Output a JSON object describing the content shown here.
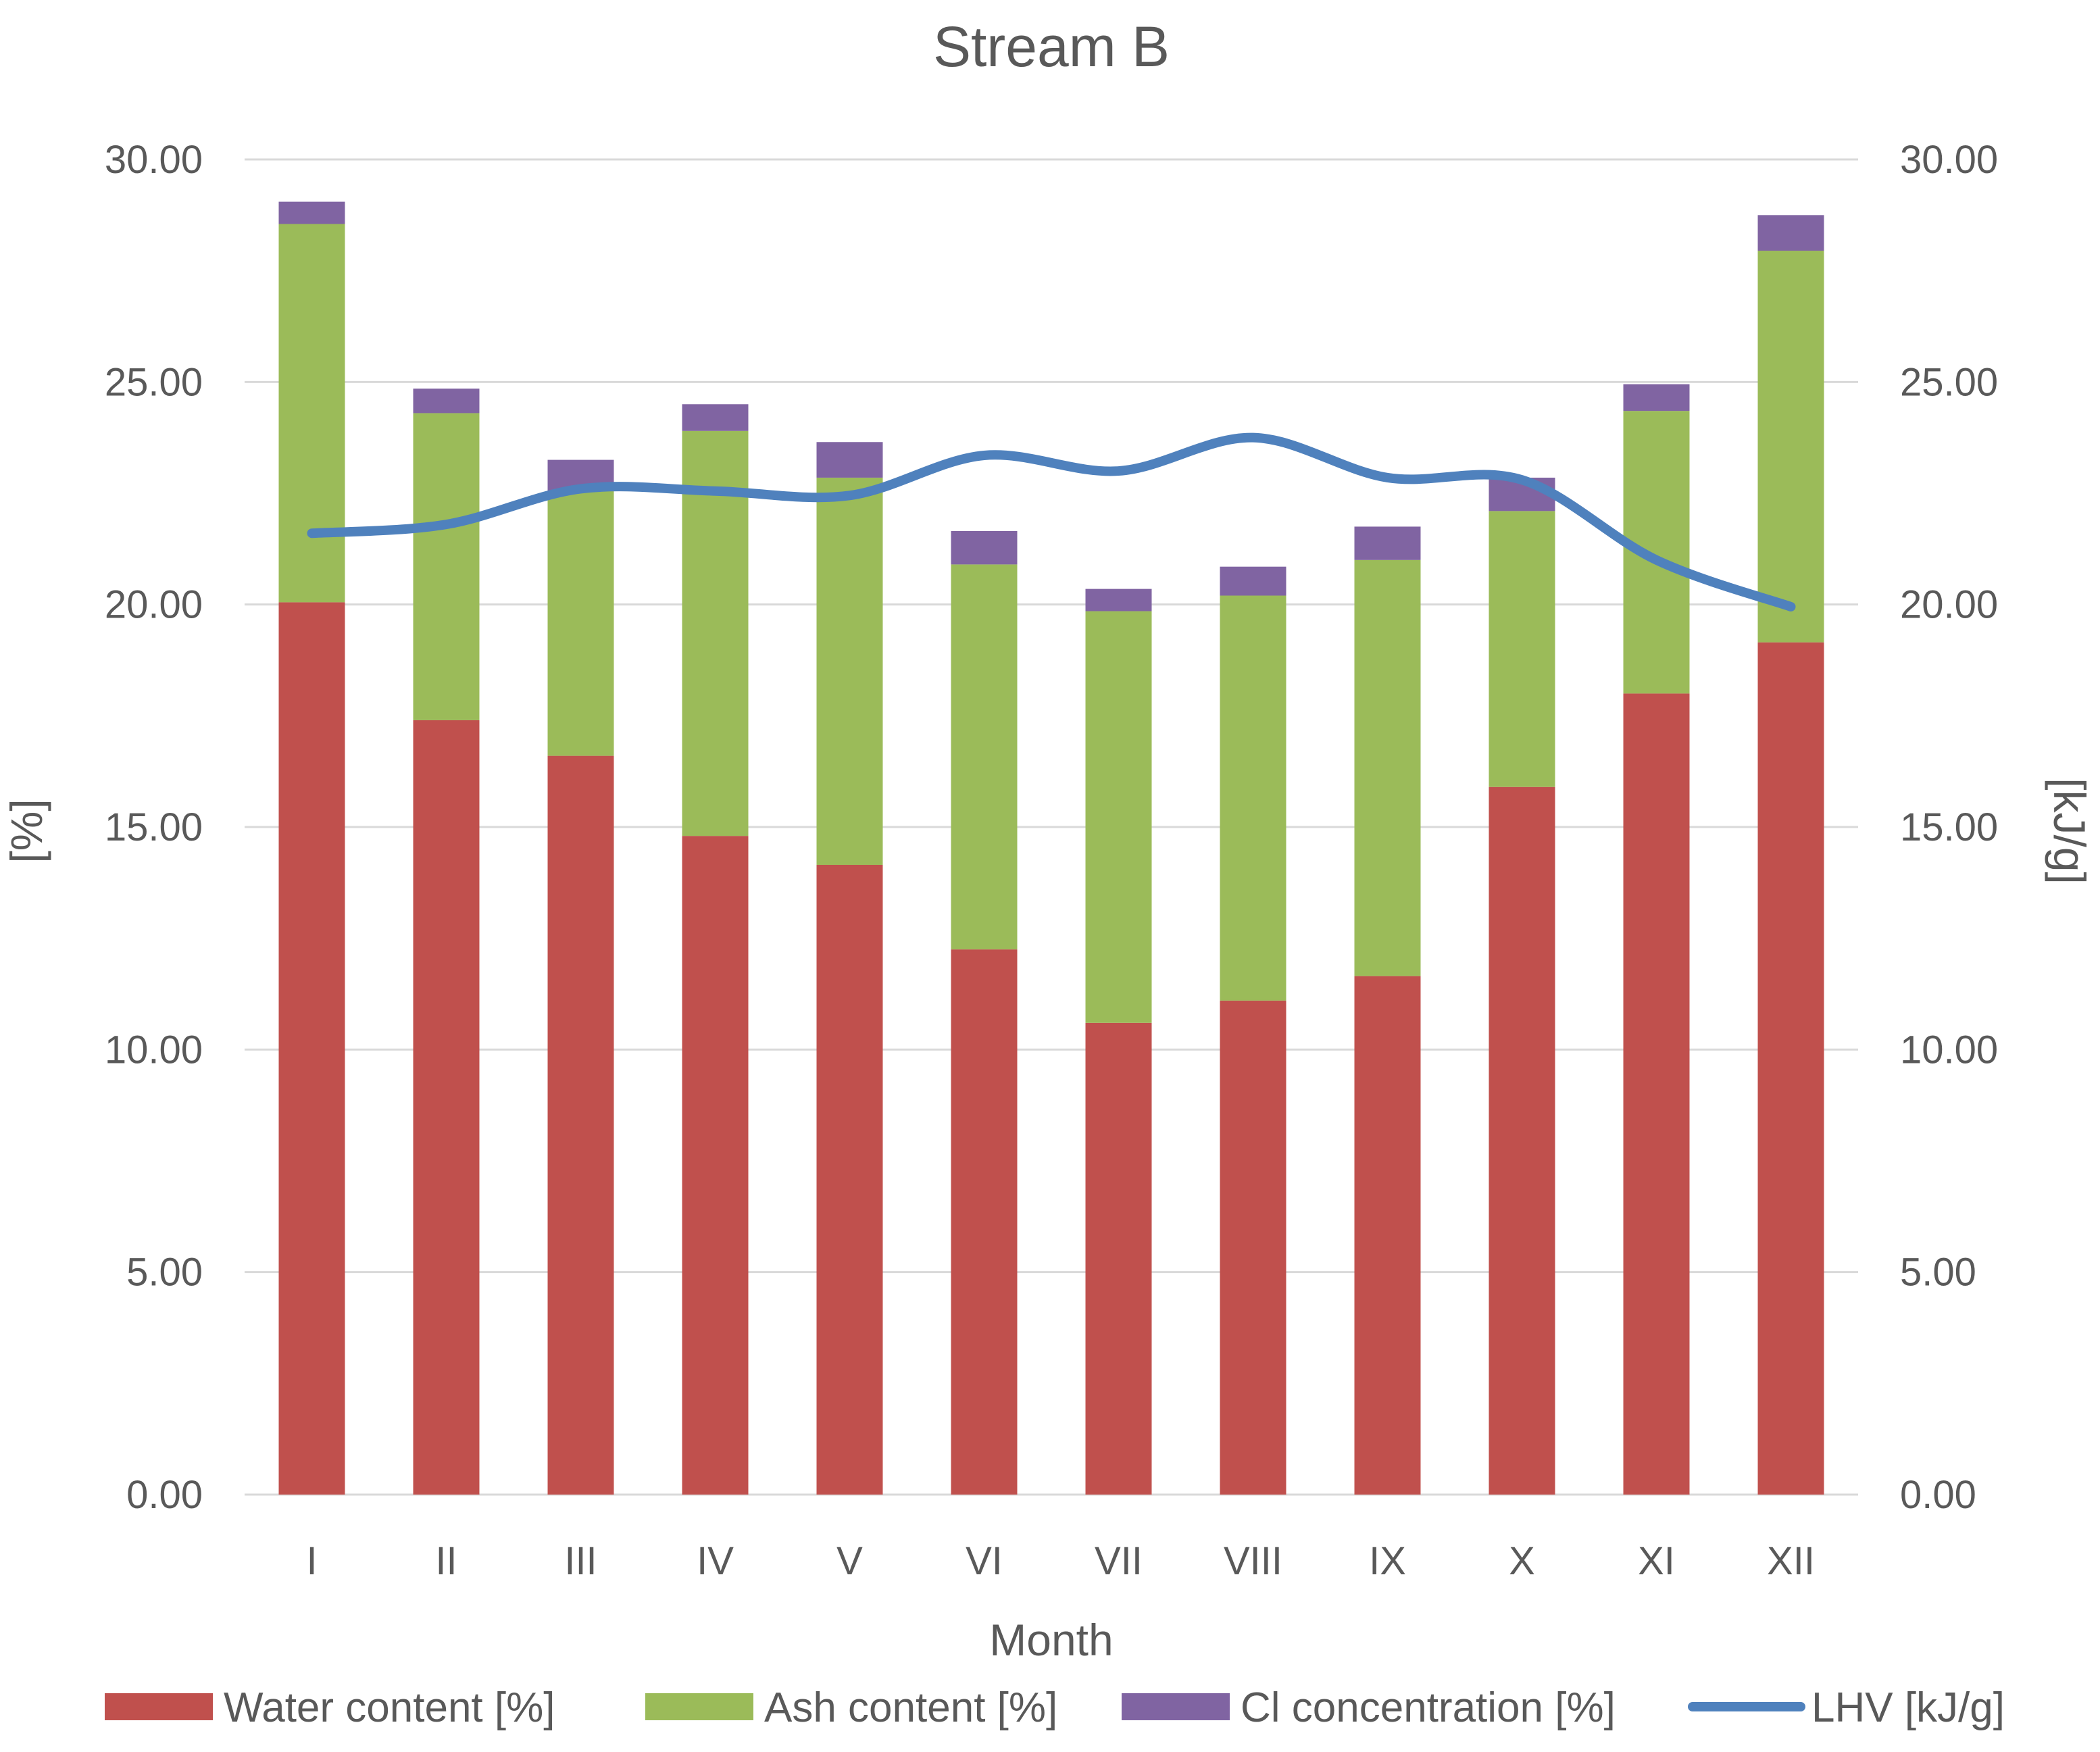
{
  "chart_data": {
    "type": "bar",
    "stacked": true,
    "title": "Stream B",
    "xlabel": "Month",
    "ylabel": "[%]",
    "y2label": "[kJ/g]",
    "ylim": [
      0,
      30
    ],
    "y2lim": [
      0,
      30
    ],
    "yticks": [
      "0.00",
      "5.00",
      "10.00",
      "15.00",
      "20.00",
      "25.00",
      "30.00"
    ],
    "y2ticks": [
      "0.00",
      "5.00",
      "10.00",
      "15.00",
      "20.00",
      "25.00",
      "30.00"
    ],
    "grid": true,
    "legend_position": "bottom",
    "categories": [
      "I",
      "II",
      "III",
      "IV",
      "V",
      "VI",
      "VII",
      "VIII",
      "IX",
      "X",
      "XI",
      "XII"
    ],
    "series": [
      {
        "name": "Water content [%]",
        "kind": "bar",
        "color": "#c0504d",
        "values": [
          20.05,
          17.4,
          16.6,
          14.8,
          14.15,
          12.25,
          10.6,
          11.1,
          11.65,
          15.9,
          18.0,
          19.15
        ]
      },
      {
        "name": "Ash content [%]",
        "kind": "bar",
        "color": "#9bbb59",
        "values": [
          8.5,
          6.9,
          5.95,
          9.1,
          8.7,
          8.65,
          9.25,
          9.1,
          9.35,
          6.2,
          6.35,
          8.8
        ]
      },
      {
        "name": "Cl concentration [%]",
        "kind": "bar",
        "color": "#8064a2",
        "values": [
          0.5,
          0.55,
          0.7,
          0.6,
          0.8,
          0.75,
          0.5,
          0.65,
          0.75,
          0.75,
          0.6,
          0.8
        ]
      },
      {
        "name": "LHV [kJ/g]",
        "kind": "line",
        "axis": "right",
        "color": "#4f81bd",
        "values": [
          21.6,
          21.8,
          22.6,
          22.55,
          22.45,
          23.35,
          23.0,
          23.75,
          22.85,
          22.8,
          21.0,
          19.95
        ]
      }
    ]
  }
}
